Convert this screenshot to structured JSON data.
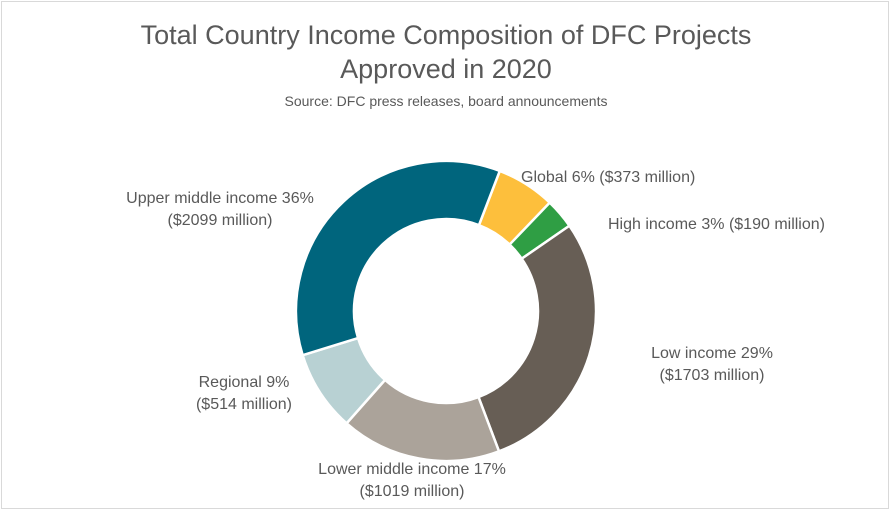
{
  "chart_data": {
    "type": "pie",
    "variant": "donut",
    "title": "Total Country Income Composition of DFC Projects Approved in 2020",
    "subtitle": "Source: DFC press releases, board announcements",
    "unit": "million",
    "legend": "none",
    "slices": [
      {
        "label": "Global",
        "percent": 6,
        "value": 373,
        "text": "Global 6% ($373 million)",
        "color": "#FDBF3C"
      },
      {
        "label": "High income",
        "percent": 3,
        "value": 190,
        "text": "High income 3% ($190 million)",
        "color": "#2F9E44"
      },
      {
        "label": "Low income",
        "percent": 29,
        "value": 1703,
        "text_line1": "Low income 29%",
        "text_line2": "($1703 million)",
        "color": "#675E55"
      },
      {
        "label": "Lower middle income",
        "percent": 17,
        "value": 1019,
        "text_line1": "Lower middle income 17%",
        "text_line2": "($1019 million)",
        "color": "#ABA39A"
      },
      {
        "label": "Regional",
        "percent": 9,
        "value": 514,
        "text_line1": "Regional 9%",
        "text_line2": "($514 million)",
        "color": "#B8D1D3"
      },
      {
        "label": "Upper middle income",
        "percent": 36,
        "value": 2099,
        "text_line1": "Upper middle income 36%",
        "text_line2": "($2099 million)",
        "color": "#00657D"
      }
    ]
  }
}
